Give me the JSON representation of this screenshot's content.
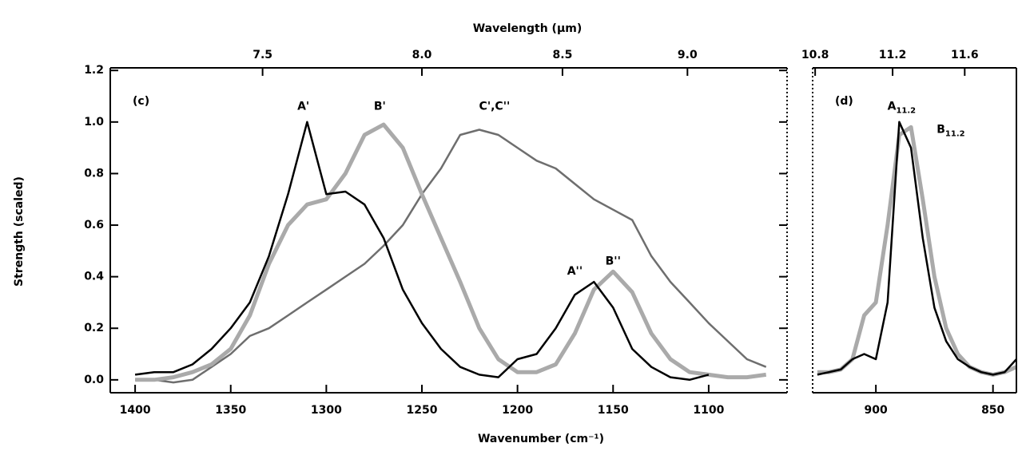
{
  "chart_data": [
    {
      "type": "line",
      "panel_label": "(c)",
      "x_label": "Wavenumber (cm⁻¹)",
      "x2_label": "Wavelength (μm)",
      "y_label": "Strength (scaled)",
      "xlim": [
        1413,
        1059
      ],
      "ylim": [
        -0.05,
        1.21
      ],
      "xticks": [
        1400,
        1350,
        1300,
        1250,
        1200,
        1150,
        1100
      ],
      "x2ticks": [
        7.5,
        {
          "value": 8.0,
          "label": "8.0"
        },
        8.5,
        {
          "value": 9.0,
          "label": "9.0"
        }
      ],
      "yticks": [
        {
          "value": 0,
          "label": "0.0"
        },
        0.2,
        0.4,
        0.6,
        0.8,
        {
          "value": 1,
          "label": "1.0"
        },
        1.2
      ],
      "x": [
        1400,
        1390,
        1380,
        1370,
        1360,
        1350,
        1340,
        1330,
        1320,
        1310,
        1300,
        1290,
        1280,
        1270,
        1260,
        1250,
        1240,
        1230,
        1220,
        1210,
        1200,
        1190,
        1180,
        1170,
        1160,
        1150,
        1140,
        1130,
        1120,
        1110,
        1100,
        1090,
        1080,
        1070
      ],
      "series": [
        {
          "color": "#6e6e6e",
          "values": [
            0.0,
            0.0,
            -0.01,
            0.0,
            0.05,
            0.1,
            0.17,
            0.2,
            0.25,
            0.3,
            0.35,
            0.4,
            0.45,
            0.52,
            0.6,
            0.72,
            0.82,
            0.95,
            0.97,
            0.95,
            0.9,
            0.85,
            0.82,
            0.76,
            0.7,
            0.66,
            0.62,
            0.48,
            0.38,
            0.3,
            0.22,
            0.15,
            0.08,
            0.05
          ]
        },
        {
          "color": "#aaaaaa",
          "values": [
            0.0,
            0.0,
            0.01,
            0.03,
            0.06,
            0.12,
            0.25,
            0.45,
            0.6,
            0.68,
            0.7,
            0.8,
            0.95,
            0.99,
            0.9,
            0.72,
            0.55,
            0.38,
            0.2,
            0.08,
            0.03,
            0.03,
            0.06,
            0.18,
            0.35,
            0.42,
            0.34,
            0.18,
            0.08,
            0.03,
            0.02,
            0.01,
            0.01,
            0.02
          ]
        },
        {
          "color": "#000000",
          "values": [
            0.02,
            0.03,
            0.03,
            0.06,
            0.12,
            0.2,
            0.3,
            0.48,
            0.72,
            1.0,
            0.72,
            0.73,
            0.68,
            0.55,
            0.35,
            0.22,
            0.12,
            0.05,
            0.02,
            0.01,
            0.08,
            0.1,
            0.2,
            0.33,
            0.38,
            0.28,
            0.12,
            0.05,
            0.01,
            0.0,
            0.02,
            null,
            null,
            null
          ]
        }
      ],
      "annotations": [
        {
          "text": "A'"
        },
        {
          "text": "B'"
        },
        {
          "text": "C',C''"
        },
        {
          "text": "A''"
        },
        {
          "text": "B''"
        }
      ]
    },
    {
      "type": "line",
      "panel_label": "(d)",
      "xlim": [
        927,
        840
      ],
      "ylim": [
        -0.05,
        1.21
      ],
      "xticks": [
        900,
        850
      ],
      "x2ticks": [
        10.8,
        11.2,
        11.6
      ],
      "x": [
        925,
        920,
        915,
        910,
        905,
        900,
        895,
        890,
        885,
        880,
        875,
        870,
        865,
        860,
        855,
        850,
        845,
        840
      ],
      "series": [
        {
          "color": "#aaaaaa",
          "values": [
            0.03,
            0.03,
            0.04,
            0.08,
            0.25,
            0.3,
            0.6,
            0.95,
            0.98,
            0.7,
            0.4,
            0.2,
            0.1,
            0.05,
            0.03,
            0.02,
            0.03,
            0.05
          ]
        },
        {
          "color": "#000000",
          "values": [
            0.02,
            0.03,
            0.04,
            0.08,
            0.1,
            0.08,
            0.3,
            1.0,
            0.9,
            0.55,
            0.28,
            0.15,
            0.08,
            0.05,
            0.03,
            0.02,
            0.03,
            0.08
          ]
        }
      ],
      "annotations": [
        {
          "text": "A",
          "subscript": "11.2"
        },
        {
          "text": "B",
          "subscript": "11.2"
        }
      ]
    }
  ]
}
